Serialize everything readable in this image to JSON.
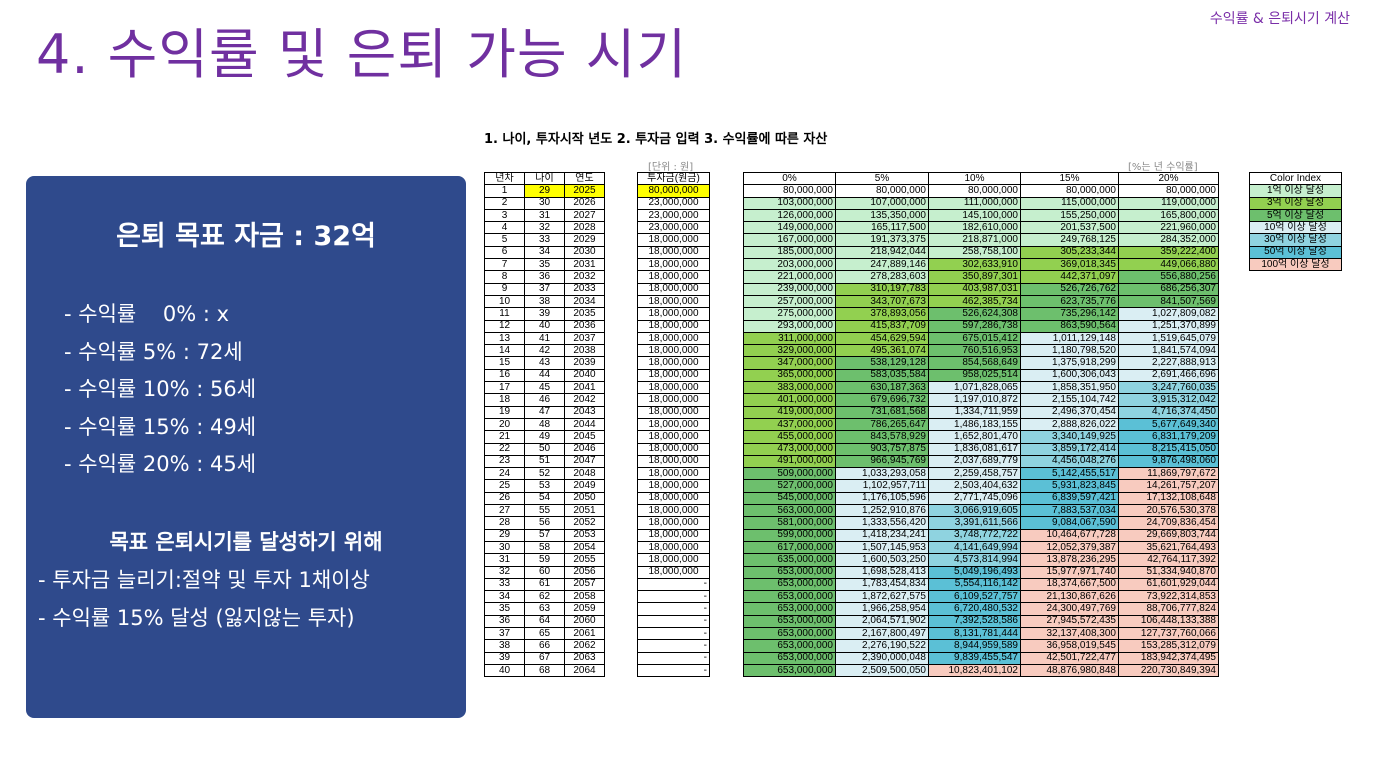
{
  "header": {
    "corner_title": "수익률 & 은퇴시기 계산",
    "main_title": "4. 수익률 및 은퇴 가능 시기"
  },
  "panel": {
    "goal": "은퇴 목표 자금 : 32억",
    "rates": [
      "- 수익률    0% : x",
      "- 수익률 5% : 72세",
      "- 수익률 10% : 56세",
      "- 수익률 15% : 49세",
      "- 수익률 20% : 45세"
    ],
    "sub_heading": "목표 은퇴시기를 달성하기 위해",
    "tips": [
      "- 투자금 늘리기:절약 및 투자 1채이상",
      "- 수익률 15% 달성 (잃지않는 투자)"
    ]
  },
  "sheet": {
    "step_line": "1. 나이, 투자시작 년도 2. 투자금 입력 3. 수익률에 따른 자산",
    "unit_note": "[단위 : 원]",
    "rate_note": "[%는 년 수익률]",
    "age_headers": [
      "년차",
      "나이",
      "연도"
    ],
    "invest_header": "투자금(원금)",
    "asset_headers": [
      "0%",
      "5%",
      "10%",
      "15%",
      "20%"
    ],
    "color_index_title": "Color Index",
    "color_index": [
      {
        "label": "1억 이상 달성",
        "color": "#c6efce"
      },
      {
        "label": "3억 이상 달성",
        "color": "#92d050"
      },
      {
        "label": "5억 이상 달성",
        "color": "#6dbf6d"
      },
      {
        "label": "10억 이상 달성",
        "color": "#daeef3"
      },
      {
        "label": "30억 이상 달성",
        "color": "#8fd3e0"
      },
      {
        "label": "50억 이상 달성",
        "color": "#5bc0d6"
      },
      {
        "label": "100억 이상 달성",
        "color": "#f8cbbf"
      }
    ],
    "rows": [
      [
        "1",
        "29",
        "2025",
        "80,000,000",
        "80,000,000",
        "80,000,000",
        "80,000,000",
        "80,000,000",
        "80,000,000"
      ],
      [
        "2",
        "30",
        "2026",
        "23,000,000",
        "103,000,000",
        "107,000,000",
        "111,000,000",
        "115,000,000",
        "119,000,000"
      ],
      [
        "3",
        "31",
        "2027",
        "23,000,000",
        "126,000,000",
        "135,350,000",
        "145,100,000",
        "155,250,000",
        "165,800,000"
      ],
      [
        "4",
        "32",
        "2028",
        "23,000,000",
        "149,000,000",
        "165,117,500",
        "182,610,000",
        "201,537,500",
        "221,960,000"
      ],
      [
        "5",
        "33",
        "2029",
        "18,000,000",
        "167,000,000",
        "191,373,375",
        "218,871,000",
        "249,768,125",
        "284,352,000"
      ],
      [
        "6",
        "34",
        "2030",
        "18,000,000",
        "185,000,000",
        "218,942,044",
        "258,758,100",
        "305,233,344",
        "359,222,400"
      ],
      [
        "7",
        "35",
        "2031",
        "18,000,000",
        "203,000,000",
        "247,889,146",
        "302,633,910",
        "369,018,345",
        "449,066,880"
      ],
      [
        "8",
        "36",
        "2032",
        "18,000,000",
        "221,000,000",
        "278,283,603",
        "350,897,301",
        "442,371,097",
        "556,880,256"
      ],
      [
        "9",
        "37",
        "2033",
        "18,000,000",
        "239,000,000",
        "310,197,783",
        "403,987,031",
        "526,726,762",
        "686,256,307"
      ],
      [
        "10",
        "38",
        "2034",
        "18,000,000",
        "257,000,000",
        "343,707,673",
        "462,385,734",
        "623,735,776",
        "841,507,569"
      ],
      [
        "11",
        "39",
        "2035",
        "18,000,000",
        "275,000,000",
        "378,893,056",
        "526,624,308",
        "735,296,142",
        "1,027,809,082"
      ],
      [
        "12",
        "40",
        "2036",
        "18,000,000",
        "293,000,000",
        "415,837,709",
        "597,286,738",
        "863,590,564",
        "1,251,370,899"
      ],
      [
        "13",
        "41",
        "2037",
        "18,000,000",
        "311,000,000",
        "454,629,594",
        "675,015,412",
        "1,011,129,148",
        "1,519,645,079"
      ],
      [
        "14",
        "42",
        "2038",
        "18,000,000",
        "329,000,000",
        "495,361,074",
        "760,516,953",
        "1,180,798,520",
        "1,841,574,094"
      ],
      [
        "15",
        "43",
        "2039",
        "18,000,000",
        "347,000,000",
        "538,129,128",
        "854,568,649",
        "1,375,918,299",
        "2,227,888,913"
      ],
      [
        "16",
        "44",
        "2040",
        "18,000,000",
        "365,000,000",
        "583,035,584",
        "958,025,514",
        "1,600,306,043",
        "2,691,466,696"
      ],
      [
        "17",
        "45",
        "2041",
        "18,000,000",
        "383,000,000",
        "630,187,363",
        "1,071,828,065",
        "1,858,351,950",
        "3,247,760,035"
      ],
      [
        "18",
        "46",
        "2042",
        "18,000,000",
        "401,000,000",
        "679,696,732",
        "1,197,010,872",
        "2,155,104,742",
        "3,915,312,042"
      ],
      [
        "19",
        "47",
        "2043",
        "18,000,000",
        "419,000,000",
        "731,681,568",
        "1,334,711,959",
        "2,496,370,454",
        "4,716,374,450"
      ],
      [
        "20",
        "48",
        "2044",
        "18,000,000",
        "437,000,000",
        "786,265,647",
        "1,486,183,155",
        "2,888,826,022",
        "5,677,649,340"
      ],
      [
        "21",
        "49",
        "2045",
        "18,000,000",
        "455,000,000",
        "843,578,929",
        "1,652,801,470",
        "3,340,149,925",
        "6,831,179,209"
      ],
      [
        "22",
        "50",
        "2046",
        "18,000,000",
        "473,000,000",
        "903,757,875",
        "1,836,081,617",
        "3,859,172,414",
        "8,215,415,050"
      ],
      [
        "23",
        "51",
        "2047",
        "18,000,000",
        "491,000,000",
        "966,945,769",
        "2,037,689,779",
        "4,456,048,276",
        "9,876,498,060"
      ],
      [
        "24",
        "52",
        "2048",
        "18,000,000",
        "509,000,000",
        "1,033,293,058",
        "2,259,458,757",
        "5,142,455,517",
        "11,869,797,672"
      ],
      [
        "25",
        "53",
        "2049",
        "18,000,000",
        "527,000,000",
        "1,102,957,711",
        "2,503,404,632",
        "5,931,823,845",
        "14,261,757,207"
      ],
      [
        "26",
        "54",
        "2050",
        "18,000,000",
        "545,000,000",
        "1,176,105,596",
        "2,771,745,096",
        "6,839,597,421",
        "17,132,108,648"
      ],
      [
        "27",
        "55",
        "2051",
        "18,000,000",
        "563,000,000",
        "1,252,910,876",
        "3,066,919,605",
        "7,883,537,034",
        "20,576,530,378"
      ],
      [
        "28",
        "56",
        "2052",
        "18,000,000",
        "581,000,000",
        "1,333,556,420",
        "3,391,611,566",
        "9,084,067,590",
        "24,709,836,454"
      ],
      [
        "29",
        "57",
        "2053",
        "18,000,000",
        "599,000,000",
        "1,418,234,241",
        "3,748,772,722",
        "10,464,677,728",
        "29,669,803,744"
      ],
      [
        "30",
        "58",
        "2054",
        "18,000,000",
        "617,000,000",
        "1,507,145,953",
        "4,141,649,994",
        "12,052,379,387",
        "35,621,764,493"
      ],
      [
        "31",
        "59",
        "2055",
        "18,000,000",
        "635,000,000",
        "1,600,503,250",
        "4,573,814,994",
        "13,878,236,295",
        "42,764,117,392"
      ],
      [
        "32",
        "60",
        "2056",
        "18,000,000",
        "653,000,000",
        "1,698,528,413",
        "5,049,196,493",
        "15,977,971,740",
        "51,334,940,870"
      ],
      [
        "33",
        "61",
        "2057",
        "-",
        "653,000,000",
        "1,783,454,834",
        "5,554,116,142",
        "18,374,667,500",
        "61,601,929,044"
      ],
      [
        "34",
        "62",
        "2058",
        "-",
        "653,000,000",
        "1,872,627,575",
        "6,109,527,757",
        "21,130,867,626",
        "73,922,314,853"
      ],
      [
        "35",
        "63",
        "2059",
        "-",
        "653,000,000",
        "1,966,258,954",
        "6,720,480,532",
        "24,300,497,769",
        "88,706,777,824"
      ],
      [
        "36",
        "64",
        "2060",
        "-",
        "653,000,000",
        "2,064,571,902",
        "7,392,528,586",
        "27,945,572,435",
        "106,448,133,388"
      ],
      [
        "37",
        "65",
        "2061",
        "-",
        "653,000,000",
        "2,167,800,497",
        "8,131,781,444",
        "32,137,408,300",
        "127,737,760,066"
      ],
      [
        "38",
        "66",
        "2062",
        "-",
        "653,000,000",
        "2,276,190,522",
        "8,944,959,589",
        "36,958,019,545",
        "153,285,312,079"
      ],
      [
        "39",
        "67",
        "2063",
        "-",
        "653,000,000",
        "2,390,000,048",
        "9,839,455,547",
        "42,501,722,477",
        "183,942,374,495"
      ],
      [
        "40",
        "68",
        "2064",
        "-",
        "653,000,000",
        "2,509,500,050",
        "10,823,401,102",
        "48,876,980,848",
        "220,730,849,394"
      ]
    ]
  }
}
